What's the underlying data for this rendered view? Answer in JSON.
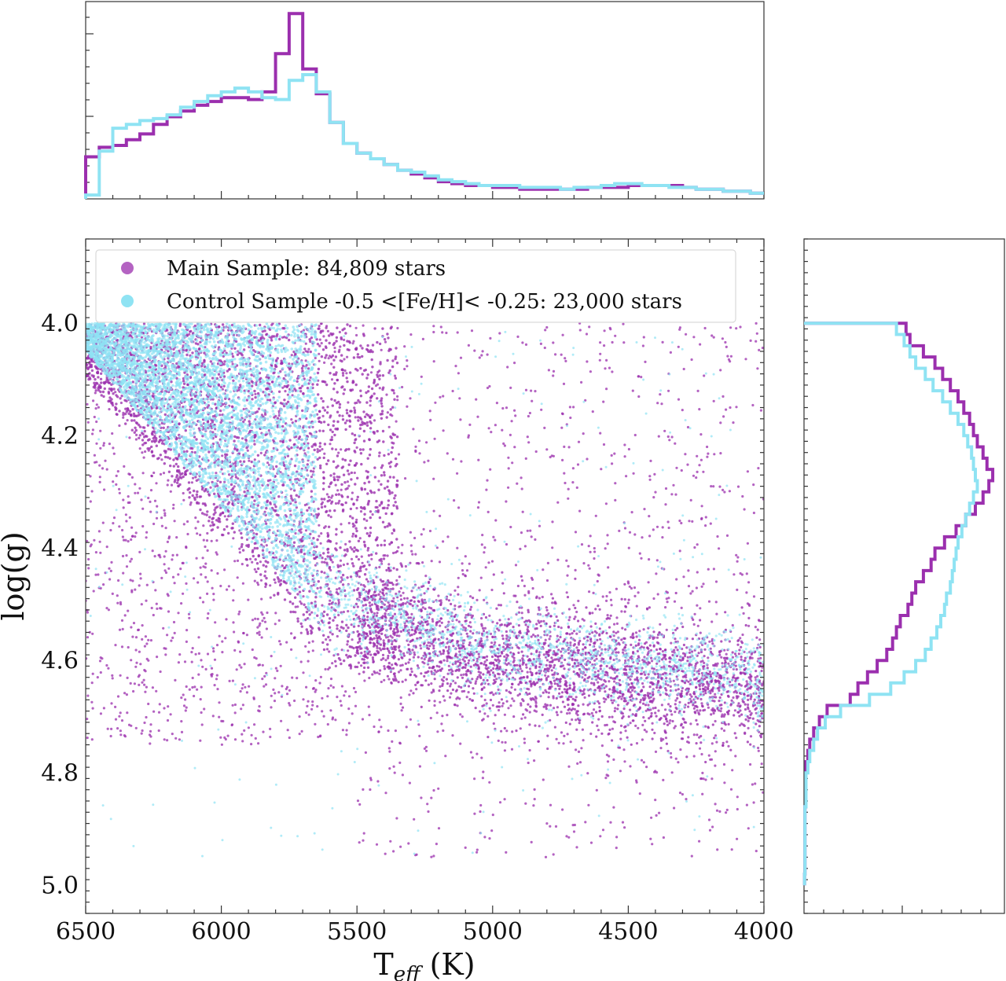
{
  "colors": {
    "main": "#9b2fae",
    "control": "#8fe3f3",
    "frame": "#333333"
  },
  "chart_data": [
    {
      "type": "scatter",
      "xlabel_main": "T",
      "xlabel_sub": "eff",
      "xlabel_unit": " (K)",
      "ylabel": "log(g)",
      "xlim": [
        6500,
        4000
      ],
      "ylim": [
        5.05,
        3.85
      ],
      "x_ticks": [
        "6500",
        "6000",
        "5500",
        "5000",
        "4500",
        "4000"
      ],
      "x_tick_values": [
        6500,
        6000,
        5500,
        5000,
        4500,
        4000
      ],
      "y_ticks": [
        "4.0",
        "4.2",
        "4.4",
        "4.6",
        "4.8",
        "5.0"
      ],
      "y_tick_values": [
        4.0,
        4.2,
        4.4,
        4.6,
        4.8,
        5.0
      ],
      "legend_position": "top-left",
      "series": [
        {
          "name": "Main Sample: 84,809 stars",
          "color": "#9b2fae"
        },
        {
          "name": "Control Sample -0.5 <[Fe/H]< -0.25: 23,000 stars",
          "color": "#8fe3f3"
        }
      ]
    },
    {
      "type": "histogram",
      "orientation": "vertical",
      "axis": "Teff",
      "xlim": [
        6500,
        4000
      ],
      "bin_edges": [
        6500,
        6450,
        6400,
        6350,
        6300,
        6250,
        6200,
        6150,
        6100,
        6050,
        6000,
        5950,
        5900,
        5850,
        5800,
        5750,
        5700,
        5650,
        5600,
        5550,
        5500,
        5450,
        5400,
        5350,
        5300,
        5250,
        5200,
        5150,
        5100,
        5050,
        5000,
        4950,
        4900,
        4850,
        4800,
        4750,
        4700,
        4650,
        4600,
        4550,
        4500,
        4450,
        4400,
        4350,
        4300,
        4250,
        4200,
        4150,
        4100,
        4050,
        4000
      ],
      "series": [
        {
          "color": "#9b2fae",
          "values": [
            0.22,
            0.27,
            0.28,
            0.31,
            0.34,
            0.39,
            0.43,
            0.46,
            0.49,
            0.51,
            0.53,
            0.53,
            0.52,
            0.56,
            0.76,
            0.97,
            0.68,
            0.55,
            0.4,
            0.29,
            0.24,
            0.21,
            0.18,
            0.15,
            0.13,
            0.11,
            0.09,
            0.08,
            0.07,
            0.07,
            0.06,
            0.06,
            0.05,
            0.05,
            0.05,
            0.05,
            0.05,
            0.06,
            0.06,
            0.06,
            0.07,
            0.07,
            0.07,
            0.07,
            0.06,
            0.05,
            0.05,
            0.04,
            0.04,
            0.03
          ]
        },
        {
          "color": "#8fe3f3",
          "values": [
            0.02,
            0.25,
            0.37,
            0.39,
            0.41,
            0.42,
            0.44,
            0.48,
            0.51,
            0.54,
            0.56,
            0.58,
            0.56,
            0.53,
            0.52,
            0.62,
            0.65,
            0.56,
            0.4,
            0.29,
            0.24,
            0.21,
            0.18,
            0.15,
            0.14,
            0.12,
            0.1,
            0.09,
            0.08,
            0.07,
            0.07,
            0.07,
            0.06,
            0.06,
            0.06,
            0.05,
            0.06,
            0.06,
            0.07,
            0.08,
            0.08,
            0.07,
            0.07,
            0.06,
            0.06,
            0.05,
            0.05,
            0.04,
            0.04,
            0.03
          ]
        }
      ]
    },
    {
      "type": "histogram",
      "orientation": "horizontal",
      "axis": "log(g)",
      "ylim": [
        5.05,
        3.85
      ],
      "bin_edges": [
        4.0,
        4.02,
        4.04,
        4.06,
        4.08,
        4.1,
        4.12,
        4.14,
        4.16,
        4.18,
        4.2,
        4.22,
        4.24,
        4.26,
        4.28,
        4.3,
        4.32,
        4.34,
        4.36,
        4.38,
        4.4,
        4.42,
        4.44,
        4.46,
        4.48,
        4.5,
        4.52,
        4.54,
        4.56,
        4.58,
        4.6,
        4.62,
        4.64,
        4.66,
        4.68,
        4.7,
        4.72,
        4.74,
        4.76,
        4.78,
        4.8,
        4.82,
        4.84,
        4.86,
        4.88,
        4.9,
        4.92,
        4.94,
        4.96,
        4.98,
        5.0
      ],
      "series": [
        {
          "color": "#9b2fae",
          "values": [
            0.53,
            0.55,
            0.62,
            0.68,
            0.72,
            0.76,
            0.8,
            0.83,
            0.86,
            0.88,
            0.9,
            0.93,
            0.95,
            0.98,
            0.96,
            0.93,
            0.89,
            0.84,
            0.79,
            0.73,
            0.68,
            0.66,
            0.62,
            0.58,
            0.56,
            0.54,
            0.5,
            0.48,
            0.46,
            0.43,
            0.38,
            0.33,
            0.28,
            0.24,
            0.12,
            0.08,
            0.05,
            0.03,
            0.02,
            0.01,
            0.01,
            0.01,
            0.01,
            0.005,
            0.005,
            0.005,
            0.005,
            0.005,
            0.005,
            0.003
          ]
        },
        {
          "color": "#8fe3f3",
          "values": [
            0.48,
            0.52,
            0.55,
            0.58,
            0.63,
            0.67,
            0.72,
            0.76,
            0.8,
            0.83,
            0.85,
            0.87,
            0.88,
            0.89,
            0.9,
            0.88,
            0.86,
            0.84,
            0.82,
            0.8,
            0.79,
            0.78,
            0.77,
            0.76,
            0.74,
            0.73,
            0.71,
            0.69,
            0.66,
            0.63,
            0.58,
            0.52,
            0.45,
            0.34,
            0.19,
            0.11,
            0.07,
            0.05,
            0.03,
            0.02,
            0.01,
            0.01,
            0.01,
            0.005,
            0.005,
            0.005,
            0.005,
            0.005,
            0.005,
            0.003
          ]
        }
      ]
    }
  ]
}
